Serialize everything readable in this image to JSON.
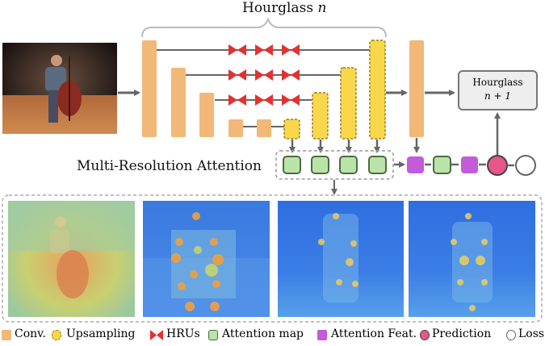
{
  "title_prefix": "Hourglass",
  "title_var": "n",
  "next_hourglass": {
    "line1": "Hourglass",
    "line2": "n + 1"
  },
  "mra_label": "Multi-Resolution Attention",
  "legend": {
    "conv": "Conv.",
    "upsampling": "Upsampling",
    "hrus": "HRUs",
    "attention_map": "Attention map",
    "attention_feat": "Attention Feat.",
    "prediction": "Prediction",
    "loss": "Loss"
  },
  "colors": {
    "conv": "#f2b877",
    "upsampling": "#f8d84a",
    "hru": "#e53030",
    "attention_map": "#b9e4a8",
    "attention_feat": "#c45bd9",
    "prediction": "#e8558a",
    "loss": "#ffffff",
    "arrow": "#666666"
  }
}
